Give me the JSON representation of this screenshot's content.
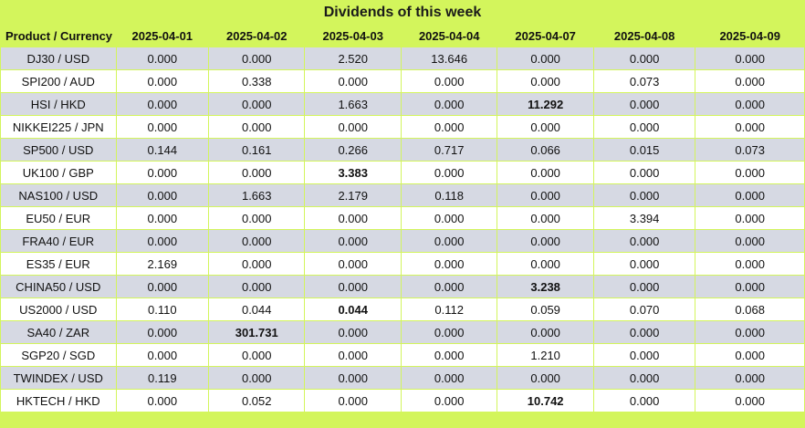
{
  "title": "Dividends of this week",
  "header": {
    "product": "Product / Currency",
    "dates": [
      "2025-04-01",
      "2025-04-02",
      "2025-04-03",
      "2025-04-04",
      "2025-04-07",
      "2025-04-08",
      "2025-04-09"
    ]
  },
  "rows": [
    {
      "product": "DJ30 / USD",
      "values": [
        "0.000",
        "0.000",
        "2.520",
        "13.646",
        "0.000",
        "0.000",
        "0.000"
      ],
      "bold": []
    },
    {
      "product": "SPI200 / AUD",
      "values": [
        "0.000",
        "0.338",
        "0.000",
        "0.000",
        "0.000",
        "0.073",
        "0.000"
      ],
      "bold": []
    },
    {
      "product": "HSI / HKD",
      "values": [
        "0.000",
        "0.000",
        "1.663",
        "0.000",
        "11.292",
        "0.000",
        "0.000"
      ],
      "bold": [
        4
      ]
    },
    {
      "product": "NIKKEI225 / JPN",
      "values": [
        "0.000",
        "0.000",
        "0.000",
        "0.000",
        "0.000",
        "0.000",
        "0.000"
      ],
      "bold": []
    },
    {
      "product": "SP500 / USD",
      "values": [
        "0.144",
        "0.161",
        "0.266",
        "0.717",
        "0.066",
        "0.015",
        "0.073"
      ],
      "bold": []
    },
    {
      "product": "UK100 / GBP",
      "values": [
        "0.000",
        "0.000",
        "3.383",
        "0.000",
        "0.000",
        "0.000",
        "0.000"
      ],
      "bold": [
        2
      ]
    },
    {
      "product": "NAS100 / USD",
      "values": [
        "0.000",
        "1.663",
        "2.179",
        "0.118",
        "0.000",
        "0.000",
        "0.000"
      ],
      "bold": []
    },
    {
      "product": "EU50 / EUR",
      "values": [
        "0.000",
        "0.000",
        "0.000",
        "0.000",
        "0.000",
        "3.394",
        "0.000"
      ],
      "bold": []
    },
    {
      "product": "FRA40 / EUR",
      "values": [
        "0.000",
        "0.000",
        "0.000",
        "0.000",
        "0.000",
        "0.000",
        "0.000"
      ],
      "bold": []
    },
    {
      "product": "ES35 / EUR",
      "values": [
        "2.169",
        "0.000",
        "0.000",
        "0.000",
        "0.000",
        "0.000",
        "0.000"
      ],
      "bold": []
    },
    {
      "product": "CHINA50 / USD",
      "values": [
        "0.000",
        "0.000",
        "0.000",
        "0.000",
        "3.238",
        "0.000",
        "0.000"
      ],
      "bold": [
        4
      ]
    },
    {
      "product": "US2000 / USD",
      "values": [
        "0.110",
        "0.044",
        "0.044",
        "0.112",
        "0.059",
        "0.070",
        "0.068"
      ],
      "bold": [
        2
      ]
    },
    {
      "product": "SA40 / ZAR",
      "values": [
        "0.000",
        "301.731",
        "0.000",
        "0.000",
        "0.000",
        "0.000",
        "0.000"
      ],
      "bold": [
        1
      ]
    },
    {
      "product": "SGP20 / SGD",
      "values": [
        "0.000",
        "0.000",
        "0.000",
        "0.000",
        "1.210",
        "0.000",
        "0.000"
      ],
      "bold": []
    },
    {
      "product": "TWINDEX / USD",
      "values": [
        "0.119",
        "0.000",
        "0.000",
        "0.000",
        "0.000",
        "0.000",
        "0.000"
      ],
      "bold": []
    },
    {
      "product": "HKTECH / HKD",
      "values": [
        "0.000",
        "0.052",
        "0.000",
        "0.000",
        "10.742",
        "0.000",
        "0.000"
      ],
      "bold": [
        4
      ]
    }
  ]
}
